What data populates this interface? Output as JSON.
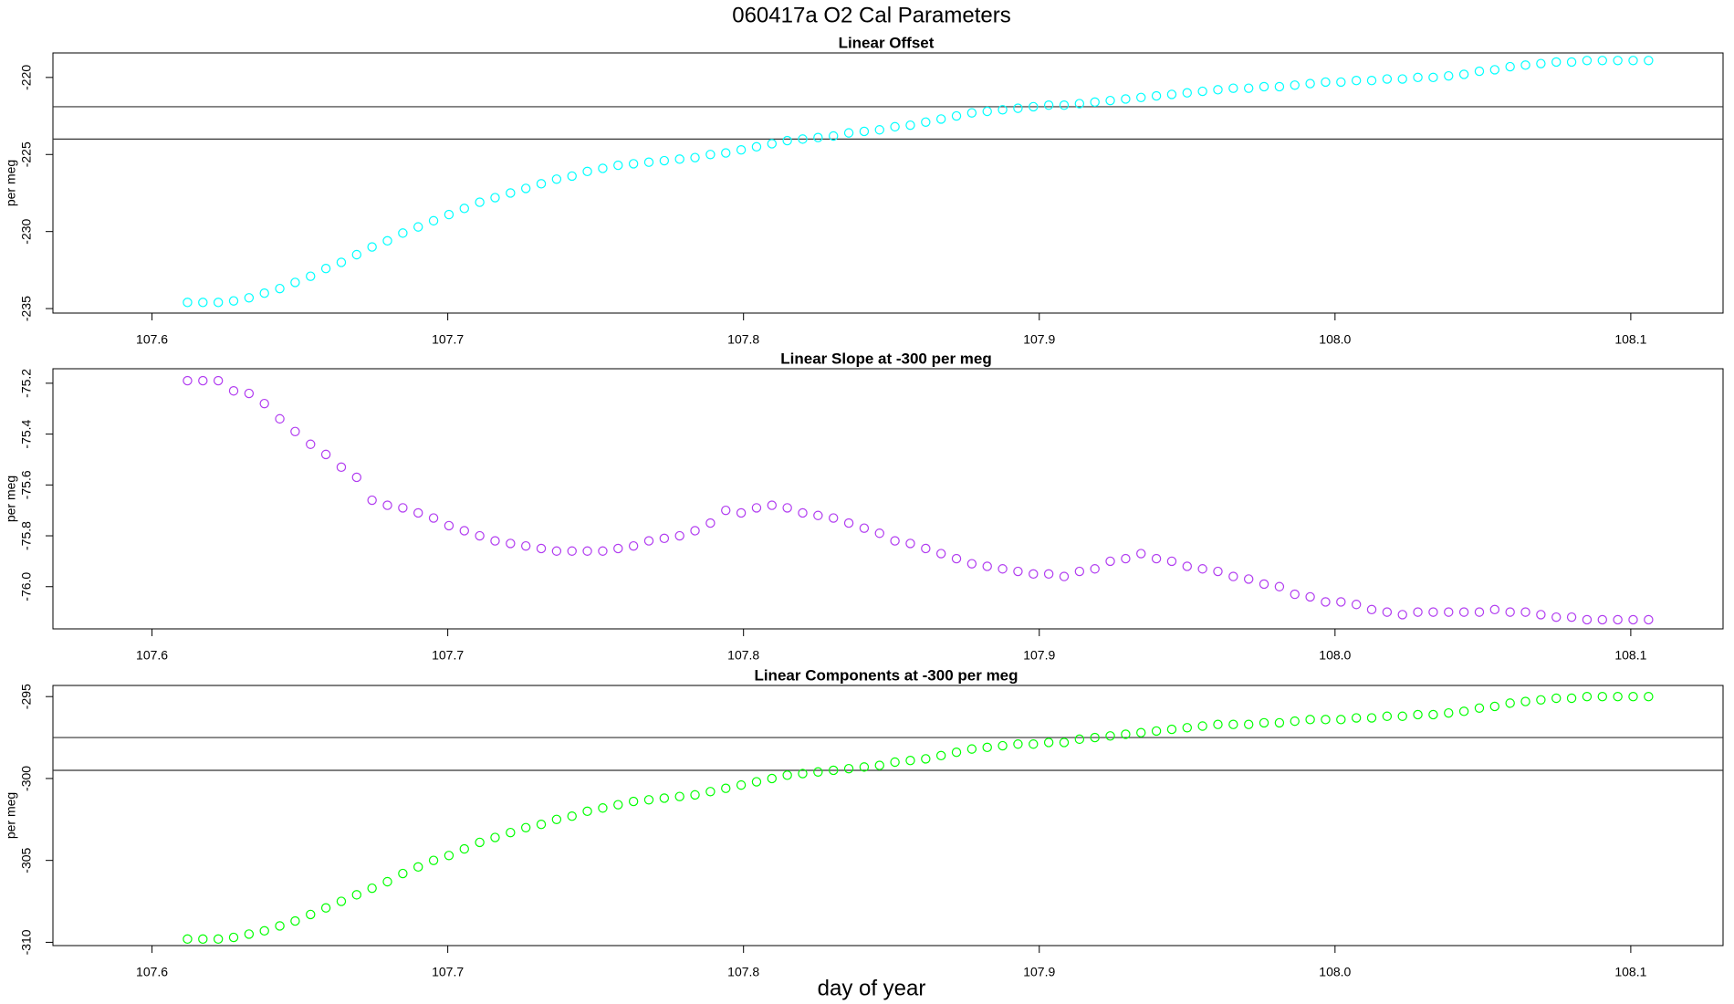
{
  "title": "060417a   O2 Cal Parameters",
  "xlabel": "day of year",
  "chart_data": [
    {
      "type": "scatter",
      "title": "Linear Offset",
      "ylabel": "per meg",
      "color": "#00ffff",
      "xlim": [
        107.5665,
        108.1312
      ],
      "ylim": [
        -235.29,
        -218.41
      ],
      "xticks": [
        107.6,
        107.7,
        107.8,
        107.9,
        {
          "value": 108,
          "label": "108.0"
        },
        108.1
      ],
      "yticks": [
        -235,
        -230,
        -225,
        -220
      ],
      "hlines": [
        -221.9,
        -224.0
      ],
      "x": [
        107.612,
        107.6172,
        107.6224,
        107.6276,
        107.6328,
        107.638,
        107.6432,
        107.6484,
        107.6536,
        107.6588,
        107.664,
        107.6692,
        107.6744,
        107.6796,
        107.6848,
        107.69,
        107.6952,
        107.7004,
        107.7056,
        107.7108,
        107.716,
        107.7212,
        107.7264,
        107.7316,
        107.7368,
        107.742,
        107.7472,
        107.7524,
        107.7576,
        107.7628,
        107.768,
        107.7732,
        107.7784,
        107.7836,
        107.7888,
        107.794,
        107.7992,
        107.8044,
        107.8096,
        107.8148,
        107.82,
        107.8252,
        107.8304,
        107.8356,
        107.8408,
        107.846,
        107.8512,
        107.8564,
        107.8616,
        107.8668,
        107.872,
        107.8772,
        107.8824,
        107.8876,
        107.8928,
        107.898,
        107.9032,
        107.9084,
        107.9136,
        107.9188,
        107.924,
        107.9292,
        107.9344,
        107.9396,
        107.9448,
        107.95,
        107.9552,
        107.9604,
        107.9656,
        107.9708,
        107.976,
        107.9812,
        107.9864,
        107.9916,
        107.9968,
        108.002,
        108.0072,
        108.0124,
        108.0176,
        108.0228,
        108.028,
        108.0332,
        108.0384,
        108.0436,
        108.0488,
        108.054,
        108.0592,
        108.0644,
        108.0696,
        108.0748,
        108.08,
        108.0852,
        108.0904,
        108.0956,
        108.1008,
        108.106
      ],
      "values": [
        -234.6,
        -234.6,
        -234.6,
        -234.5,
        -234.3,
        -234.0,
        -233.7,
        -233.3,
        -232.9,
        -232.4,
        -232.0,
        -231.5,
        -231.0,
        -230.6,
        -230.1,
        -229.7,
        -229.3,
        -228.9,
        -228.5,
        -228.1,
        -227.8,
        -227.5,
        -227.2,
        -226.9,
        -226.6,
        -226.4,
        -226.1,
        -225.9,
        -225.7,
        -225.6,
        -225.5,
        -225.4,
        -225.3,
        -225.2,
        -225.0,
        -224.9,
        -224.7,
        -224.5,
        -224.3,
        -224.1,
        -224.0,
        -223.9,
        -223.8,
        -223.6,
        -223.5,
        -223.4,
        -223.2,
        -223.1,
        -222.9,
        -222.7,
        -222.5,
        -222.3,
        -222.2,
        -222.1,
        -222.0,
        -221.9,
        -221.8,
        -221.8,
        -221.7,
        -221.6,
        -221.5,
        -221.4,
        -221.3,
        -221.2,
        -221.1,
        -221.0,
        -220.9,
        -220.8,
        -220.7,
        -220.7,
        -220.6,
        -220.6,
        -220.5,
        -220.4,
        -220.3,
        -220.3,
        -220.2,
        -220.2,
        -220.1,
        -220.1,
        -220.0,
        -220.0,
        -219.9,
        -219.8,
        -219.6,
        -219.5,
        -219.3,
        -219.2,
        -219.1,
        -219.0,
        -219.0,
        -218.9,
        -218.9,
        -218.9,
        -218.9,
        -218.9
      ]
    },
    {
      "type": "scatter",
      "title": "Linear Slope at -300 per meg",
      "ylabel": "per meg",
      "color": "#b13cf0",
      "xlim": [
        107.5665,
        108.1312
      ],
      "ylim": [
        -76.166,
        -75.143
      ],
      "xticks": [
        107.6,
        107.7,
        107.8,
        107.9,
        {
          "value": 108,
          "label": "108.0"
        },
        108.1
      ],
      "yticks": [
        {
          "value": -76,
          "label": "-76.0"
        },
        -75.8,
        -75.6,
        -75.4,
        -75.2
      ],
      "x": [
        107.612,
        107.6172,
        107.6224,
        107.6276,
        107.6328,
        107.638,
        107.6432,
        107.6484,
        107.6536,
        107.6588,
        107.664,
        107.6692,
        107.6744,
        107.6796,
        107.6848,
        107.69,
        107.6952,
        107.7004,
        107.7056,
        107.7108,
        107.716,
        107.7212,
        107.7264,
        107.7316,
        107.7368,
        107.742,
        107.7472,
        107.7524,
        107.7576,
        107.7628,
        107.768,
        107.7732,
        107.7784,
        107.7836,
        107.7888,
        107.794,
        107.7992,
        107.8044,
        107.8096,
        107.8148,
        107.82,
        107.8252,
        107.8304,
        107.8356,
        107.8408,
        107.846,
        107.8512,
        107.8564,
        107.8616,
        107.8668,
        107.872,
        107.8772,
        107.8824,
        107.8876,
        107.8928,
        107.898,
        107.9032,
        107.9084,
        107.9136,
        107.9188,
        107.924,
        107.9292,
        107.9344,
        107.9396,
        107.9448,
        107.95,
        107.9552,
        107.9604,
        107.9656,
        107.9708,
        107.976,
        107.9812,
        107.9864,
        107.9916,
        107.9968,
        108.002,
        108.0072,
        108.0124,
        108.0176,
        108.0228,
        108.028,
        108.0332,
        108.0384,
        108.0436,
        108.0488,
        108.054,
        108.0592,
        108.0644,
        108.0696,
        108.0748,
        108.08,
        108.0852,
        108.0904,
        108.0956,
        108.1008,
        108.106
      ],
      "values": [
        -75.19,
        -75.19,
        -75.19,
        -75.23,
        -75.24,
        -75.28,
        -75.34,
        -75.39,
        -75.44,
        -75.48,
        -75.53,
        -75.57,
        -75.66,
        -75.68,
        -75.69,
        -75.71,
        -75.73,
        -75.76,
        -75.78,
        -75.8,
        -75.82,
        -75.83,
        -75.84,
        -75.85,
        -75.86,
        -75.86,
        -75.86,
        -75.86,
        -75.85,
        -75.84,
        -75.82,
        -75.81,
        -75.8,
        -75.78,
        -75.75,
        -75.7,
        -75.71,
        -75.69,
        -75.68,
        -75.69,
        -75.71,
        -75.72,
        -75.73,
        -75.75,
        -75.77,
        -75.79,
        -75.82,
        -75.83,
        -75.85,
        -75.87,
        -75.89,
        -75.91,
        -75.92,
        -75.93,
        -75.94,
        -75.95,
        -75.95,
        -75.96,
        -75.94,
        -75.93,
        -75.9,
        -75.89,
        -75.87,
        -75.89,
        -75.9,
        -75.92,
        -75.93,
        -75.94,
        -75.96,
        -75.97,
        -75.99,
        -76.0,
        -76.03,
        -76.04,
        -76.06,
        -76.06,
        -76.07,
        -76.09,
        -76.1,
        -76.11,
        -76.1,
        -76.1,
        -76.1,
        -76.1,
        -76.1,
        -76.09,
        -76.1,
        -76.1,
        -76.11,
        -76.12,
        -76.12,
        -76.13,
        -76.13,
        -76.13,
        -76.13,
        -76.13
      ]
    },
    {
      "type": "scatter",
      "title": "Linear Components at -300 per meg",
      "ylabel": "per meg",
      "color": "#00ff00",
      "xlim": [
        107.5665,
        108.1312
      ],
      "ylim": [
        -310.2,
        -294.32
      ],
      "xticks": [
        107.6,
        107.7,
        107.8,
        107.9,
        {
          "value": 108,
          "label": "108.0"
        },
        108.1
      ],
      "yticks": [
        -310,
        -305,
        -300,
        -295
      ],
      "hlines": [
        -297.5,
        -299.5
      ],
      "x": [
        107.612,
        107.6172,
        107.6224,
        107.6276,
        107.6328,
        107.638,
        107.6432,
        107.6484,
        107.6536,
        107.6588,
        107.664,
        107.6692,
        107.6744,
        107.6796,
        107.6848,
        107.69,
        107.6952,
        107.7004,
        107.7056,
        107.7108,
        107.716,
        107.7212,
        107.7264,
        107.7316,
        107.7368,
        107.742,
        107.7472,
        107.7524,
        107.7576,
        107.7628,
        107.768,
        107.7732,
        107.7784,
        107.7836,
        107.7888,
        107.794,
        107.7992,
        107.8044,
        107.8096,
        107.8148,
        107.82,
        107.8252,
        107.8304,
        107.8356,
        107.8408,
        107.846,
        107.8512,
        107.8564,
        107.8616,
        107.8668,
        107.872,
        107.8772,
        107.8824,
        107.8876,
        107.8928,
        107.898,
        107.9032,
        107.9084,
        107.9136,
        107.9188,
        107.924,
        107.9292,
        107.9344,
        107.9396,
        107.9448,
        107.95,
        107.9552,
        107.9604,
        107.9656,
        107.9708,
        107.976,
        107.9812,
        107.9864,
        107.9916,
        107.9968,
        108.002,
        108.0072,
        108.0124,
        108.0176,
        108.0228,
        108.028,
        108.0332,
        108.0384,
        108.0436,
        108.0488,
        108.054,
        108.0592,
        108.0644,
        108.0696,
        108.0748,
        108.08,
        108.0852,
        108.0904,
        108.0956,
        108.1008,
        108.106
      ],
      "values": [
        -309.8,
        -309.8,
        -309.8,
        -309.7,
        -309.5,
        -309.3,
        -309.0,
        -308.7,
        -308.3,
        -307.9,
        -307.5,
        -307.1,
        -306.7,
        -306.3,
        -305.8,
        -305.4,
        -305.0,
        -304.7,
        -304.3,
        -303.9,
        -303.6,
        -303.3,
        -303.0,
        -302.8,
        -302.5,
        -302.3,
        -302.0,
        -301.8,
        -301.6,
        -301.4,
        -301.3,
        -301.2,
        -301.1,
        -301.0,
        -300.8,
        -300.6,
        -300.4,
        -300.2,
        -300.0,
        -299.8,
        -299.7,
        -299.6,
        -299.5,
        -299.4,
        -299.3,
        -299.2,
        -299.0,
        -298.9,
        -298.8,
        -298.6,
        -298.4,
        -298.2,
        -298.1,
        -298.0,
        -297.9,
        -297.9,
        -297.8,
        -297.8,
        -297.6,
        -297.5,
        -297.4,
        -297.3,
        -297.2,
        -297.1,
        -297.0,
        -296.9,
        -296.8,
        -296.7,
        -296.7,
        -296.7,
        -296.6,
        -296.6,
        -296.5,
        -296.4,
        -296.4,
        -296.4,
        -296.3,
        -296.3,
        -296.2,
        -296.2,
        -296.1,
        -296.1,
        -296.0,
        -295.9,
        -295.7,
        -295.6,
        -295.4,
        -295.3,
        -295.2,
        -295.1,
        -295.1,
        -295.0,
        -295.0,
        -295.0,
        -295.0,
        -295.0
      ]
    }
  ]
}
